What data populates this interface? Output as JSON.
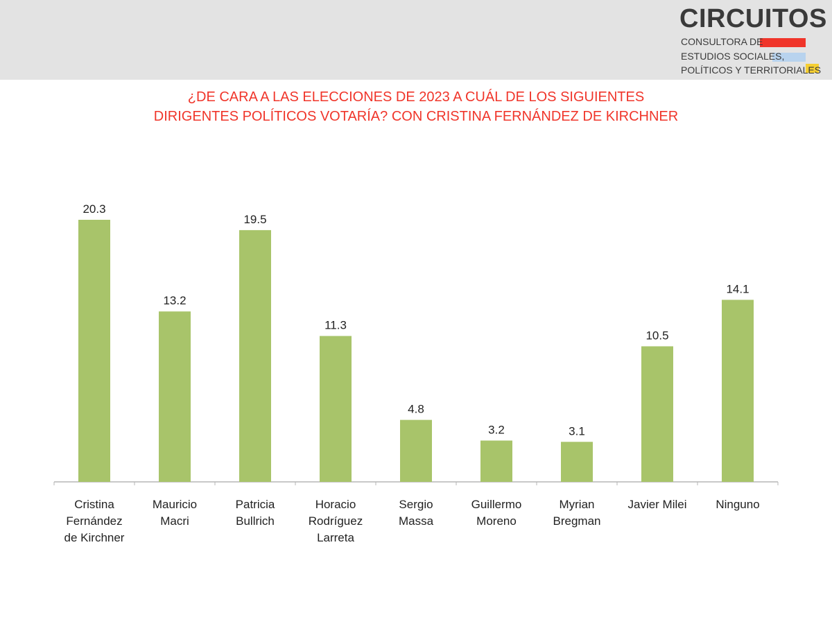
{
  "logo": {
    "name": "CIRCUITOS",
    "line1": "CONSULTORA DE",
    "line2": "ESTUDIOS SOCIALES,",
    "line3": "POLÍTICOS Y TERRITORIALES",
    "stripe_colors": [
      "#f0352a",
      "#b8d3ee",
      "#f5cf33"
    ]
  },
  "colors": {
    "title": "#f0352a",
    "bar": "#a8c46a",
    "axis": "#b5b5b5",
    "header_band": "#e3e3e3"
  },
  "chart_data": {
    "type": "bar",
    "title_lines": [
      "¿DE CARA A LAS ELECCIONES DE 2023 A CUÁL DE LOS SIGUIENTES",
      "DIRIGENTES POLÍTICOS VOTARÍA? CON CRISTINA FERNÁNDEZ DE KIRCHNER"
    ],
    "categories": [
      [
        "Cristina",
        "Fernández",
        "de Kirchner"
      ],
      [
        "Mauricio",
        "Macri"
      ],
      [
        "Patricia",
        "Bullrich"
      ],
      [
        "Horacio",
        "Rodríguez",
        "Larreta"
      ],
      [
        "Sergio",
        "Massa"
      ],
      [
        "Guillermo",
        "Moreno"
      ],
      [
        "Myrian",
        "Bregman"
      ],
      [
        "Javier Milei"
      ],
      [
        "Ninguno"
      ]
    ],
    "values": [
      20.3,
      13.2,
      19.5,
      11.3,
      4.8,
      3.2,
      3.1,
      10.5,
      14.1
    ],
    "value_labels": [
      "20.3",
      "13.2",
      "19.5",
      "11.3",
      "4.8",
      "3.2",
      "3.1",
      "10.5",
      "14.1"
    ],
    "ylim": [
      0,
      20.3
    ],
    "xlabel": "",
    "ylabel": "",
    "grid": false,
    "legend": "none"
  }
}
